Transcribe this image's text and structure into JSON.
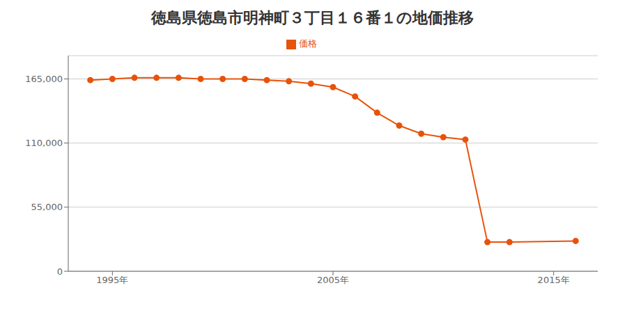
{
  "chart_data": {
    "type": "line",
    "title": "徳島県徳島市明神町３丁目１６番１の地価推移",
    "x": [
      1994,
      1995,
      1996,
      1997,
      1998,
      1999,
      2000,
      2001,
      2002,
      2003,
      2004,
      2005,
      2006,
      2007,
      2008,
      2009,
      2010,
      2011,
      2012,
      2013,
      2016
    ],
    "series": [
      {
        "name": "価格",
        "color": "#e8520a",
        "marker": "circle",
        "values": [
          164000,
          165000,
          166000,
          166000,
          166000,
          165000,
          165000,
          165000,
          164000,
          163000,
          161000,
          158000,
          150000,
          136000,
          125000,
          118000,
          115000,
          113000,
          25000,
          25000,
          26000
        ]
      }
    ],
    "xlim": [
      1993,
      2017
    ],
    "xticks": [
      {
        "value": 1995,
        "label": "1995年"
      },
      {
        "value": 2005,
        "label": "2005年"
      },
      {
        "value": 2015,
        "label": "2015年"
      }
    ],
    "ylim": [
      0,
      185000
    ],
    "yticks": [
      0,
      {
        "value": 55000,
        "label": "55,000"
      },
      {
        "value": 110000,
        "label": "110,000"
      },
      {
        "value": 165000,
        "label": "165,000"
      }
    ],
    "grid": "y",
    "legend": "top"
  }
}
